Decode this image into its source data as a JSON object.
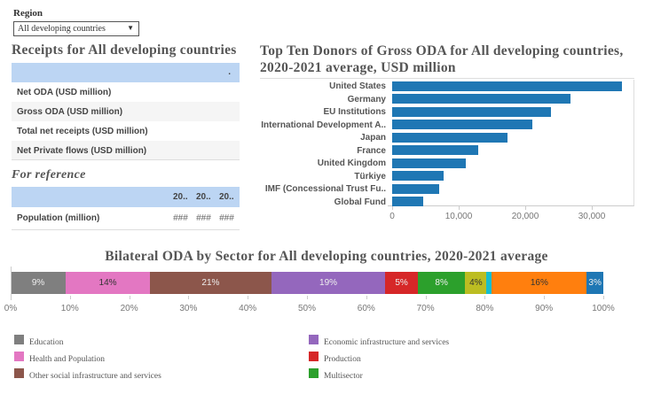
{
  "filter": {
    "label": "Region",
    "value": "All developing countries"
  },
  "receipts": {
    "title": "Receipts for All developing countries",
    "header_value": ".",
    "rows": [
      "Net ODA (USD million)",
      "Gross ODA (USD million)",
      "Total net receipts (USD million)",
      "Net Private flows (USD million)"
    ]
  },
  "reference": {
    "title": "For reference",
    "columns": [
      "20..",
      "20..",
      "20.."
    ],
    "rows": [
      {
        "label": "Population (million)",
        "values": [
          "###",
          "###",
          "###"
        ]
      }
    ]
  },
  "chart_data": [
    {
      "type": "bar",
      "orientation": "horizontal",
      "title": "Top Ten Donors of Gross ODA for All developing countries, 2020-2021 average, USD million",
      "categories": [
        "United States",
        "Germany",
        "EU Institutions",
        "International Development A..",
        "Japan",
        "France",
        "United Kingdom",
        "Türkiye",
        "IMF (Concessional Trust Fu..",
        "Global Fund"
      ],
      "values": [
        34500,
        26800,
        23900,
        21100,
        17300,
        12900,
        11000,
        7700,
        7100,
        4700
      ],
      "xlim": [
        0,
        36500
      ],
      "xticks": [
        0,
        10000,
        20000,
        30000
      ],
      "xtick_labels": [
        "0",
        "10,000",
        "20,000",
        "30,000"
      ],
      "color": "#1f77b4",
      "grid": false
    },
    {
      "type": "bar",
      "orientation": "stacked-horizontal",
      "title": "Bilateral ODA by Sector for All developing countries, 2020-2021 average",
      "series": [
        {
          "name": "Education",
          "value": 9.3,
          "label": "9%",
          "color": "#7f7f7f"
        },
        {
          "name": "Health and Population",
          "value": 14.2,
          "label": "14%",
          "color": "#e377c2"
        },
        {
          "name": "Other social infrastructure and services",
          "value": 20.5,
          "label": "21%",
          "color": "#8c564b"
        },
        {
          "name": "Economic infrastructure and services",
          "value": 19.2,
          "label": "19%",
          "color": "#9467bd"
        },
        {
          "name": "Production",
          "value": 5.5,
          "label": "5%",
          "color": "#d62728"
        },
        {
          "name": "Multisector",
          "value": 8.0,
          "label": "8%",
          "color": "#2ca02c"
        },
        {
          "value": 3.6,
          "label": "4%",
          "color": "#bcbd22"
        },
        {
          "value": 0.9,
          "label": "",
          "color": "#17becf"
        },
        {
          "value": 16.0,
          "label": "16%",
          "color": "#ff7f0e"
        },
        {
          "value": 2.8,
          "label": "3%",
          "color": "#1f77b4"
        }
      ],
      "xlim": [
        0,
        100
      ],
      "xtick_labels": [
        "0%",
        "10%",
        "20%",
        "30%",
        "40%",
        "50%",
        "60%",
        "70%",
        "80%",
        "90%",
        "100%"
      ],
      "legend": "bottom"
    }
  ]
}
